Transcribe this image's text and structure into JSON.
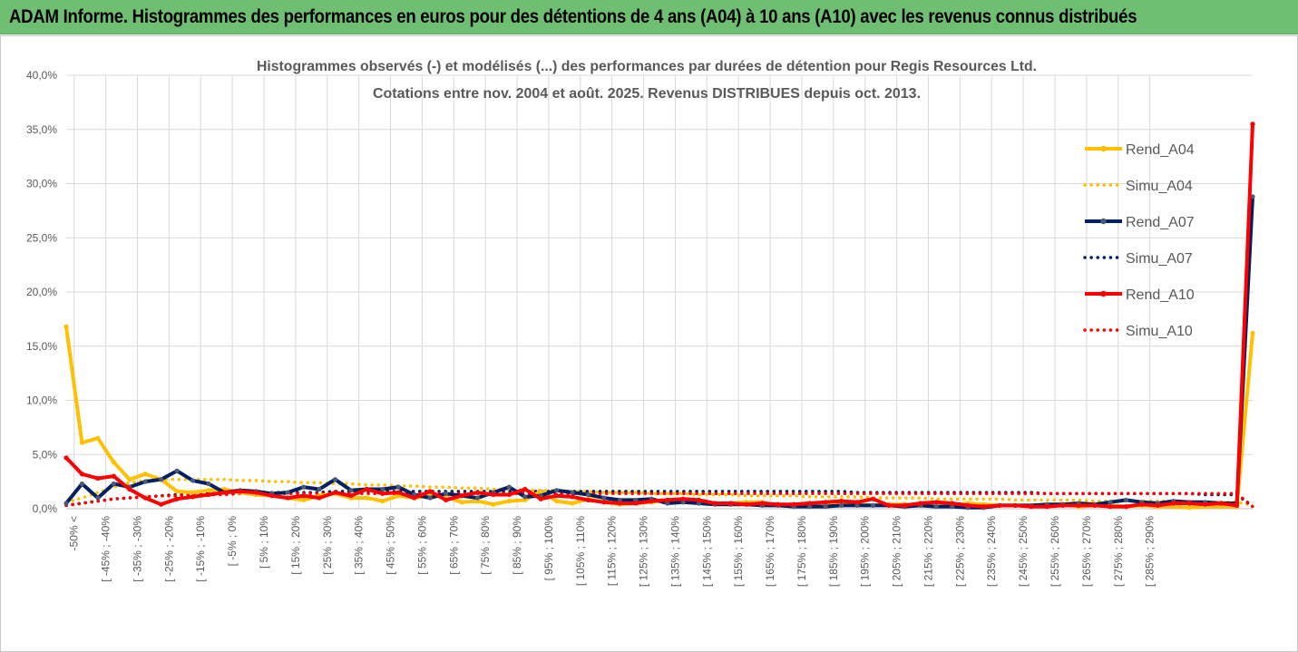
{
  "banner": {
    "title": "ADAM Informe. Histogrammes des performances en euros pour des détentions de 4 ans (A04) à 10 ans (A10) avec les revenus connus distribués"
  },
  "chart_data": {
    "type": "line",
    "title_lines": [
      "Histogrammes observés (-) et modélisés (...) des performances par durées de détention pour Regis Resources Ltd.",
      "Cotations entre nov. 2004 et août. 2025. Revenus DISTRIBUES depuis oct. 2013."
    ],
    "ylim": [
      0,
      40
    ],
    "y_ticks": [
      "0,0%",
      "5,0%",
      "10,0%",
      "15,0%",
      "20,0%",
      "25,0%",
      "30,0%",
      "35,0%",
      "40,0%"
    ],
    "x_tick_labels": [
      "-50% <",
      "[ -45% ; -40%",
      "[ -35% ; -30%",
      "[ -25% ; -20%",
      "[ -15% ; -10%",
      "[ -5% ; 0%",
      "[ 5% ; 10%",
      "[ 15% ; 20%",
      "[ 25% ; 30%",
      "[ 35% ; 40%",
      "[ 45% ; 50%",
      "[ 55% ; 60%",
      "[ 65% ; 70%",
      "[ 75% ; 80%",
      "[ 85% ; 90%",
      "[ 95% ; 100%",
      "[ 105% ; 110%",
      "[ 115% ; 120%",
      "[ 125% ; 130%",
      "[ 135% ; 140%",
      "[ 145% ; 150%",
      "[ 155% ; 160%",
      "[ 165% ; 170%",
      "[ 175% ; 180%",
      "[ 185% ; 190%",
      "[ 195% ; 200%",
      "[ 205% ; 210%",
      "[ 215% ; 220%",
      "[ 225% ; 230%",
      "[ 235% ; 240%",
      "[ 245% ; 250%",
      "[ 255% ; 260%",
      "[ 265% ; 270%",
      "[ 275% ; 280%",
      "[ 285% ; 290%"
    ],
    "grid": true,
    "legend_position": "right",
    "series": [
      {
        "name": "Rend_A04",
        "style": "solid",
        "markers": true,
        "color": "#ffc000",
        "values": [
          16.8,
          6.1,
          6.5,
          4.3,
          2.7,
          3.2,
          2.7,
          1.6,
          1.5,
          1.7,
          1.8,
          1.5,
          1.3,
          1.2,
          1.0,
          0.8,
          1.2,
          1.4,
          1.0,
          1.0,
          0.7,
          1.2,
          1.0,
          1.2,
          1.1,
          0.6,
          0.7,
          0.4,
          0.7,
          0.8,
          1.6,
          0.7,
          0.5,
          0.9,
          0.6,
          0.4,
          0.5,
          0.6,
          0.8,
          0.6,
          0.7,
          0.5,
          0.5,
          0.6,
          0.6,
          0.3,
          0.4,
          0.5,
          0.4,
          0.4,
          0.4,
          0.3,
          0.4,
          0.4,
          0.3,
          0.2,
          0.3,
          0.5,
          0.4,
          0.3,
          0.3,
          0.3,
          0.2,
          0.4,
          0.2,
          0.3,
          0.3,
          0.2,
          0.3,
          0.2,
          0.2,
          0.1,
          0.2,
          0.2,
          0.2,
          16.2
        ]
      },
      {
        "name": "Simu_A04",
        "style": "dotted",
        "markers": false,
        "color": "#ffc000",
        "values": [
          0.6,
          1.0,
          1.5,
          2.0,
          2.4,
          2.6,
          2.7,
          2.7,
          2.7,
          2.7,
          2.7,
          2.6,
          2.6,
          2.5,
          2.5,
          2.4,
          2.4,
          2.3,
          2.3,
          2.2,
          2.2,
          2.1,
          2.1,
          2.0,
          2.0,
          1.9,
          1.9,
          1.8,
          1.8,
          1.7,
          1.7,
          1.7,
          1.6,
          1.6,
          1.5,
          1.5,
          1.5,
          1.4,
          1.4,
          1.4,
          1.3,
          1.3,
          1.3,
          1.2,
          1.2,
          1.2,
          1.2,
          1.1,
          1.1,
          1.1,
          1.1,
          1.0,
          1.0,
          1.0,
          1.0,
          0.9,
          0.9,
          0.9,
          0.9,
          0.9,
          0.8,
          0.8,
          0.8,
          0.8,
          0.8,
          0.7,
          0.7,
          0.7,
          0.7,
          0.7,
          0.7,
          0.6,
          0.6,
          0.6,
          0.6,
          0.3
        ]
      },
      {
        "name": "Rend_A07",
        "style": "solid",
        "markers": true,
        "color": "#002060",
        "values": [
          0.5,
          2.3,
          1.0,
          2.3,
          2.0,
          2.5,
          2.7,
          3.5,
          2.6,
          2.3,
          1.5,
          1.7,
          1.6,
          1.4,
          1.5,
          2.0,
          1.8,
          2.7,
          1.7,
          1.8,
          1.8,
          2.0,
          1.3,
          1.0,
          1.4,
          1.2,
          1.0,
          1.5,
          2.0,
          1.1,
          1.2,
          1.7,
          1.5,
          1.3,
          1.0,
          0.8,
          0.8,
          0.9,
          0.5,
          0.6,
          0.5,
          0.4,
          0.4,
          0.4,
          0.3,
          0.3,
          0.2,
          0.2,
          0.2,
          0.3,
          0.3,
          0.3,
          0.3,
          0.2,
          0.3,
          0.2,
          0.2,
          0.1,
          0.1,
          0.3,
          0.3,
          0.3,
          0.4,
          0.4,
          0.5,
          0.4,
          0.6,
          0.8,
          0.6,
          0.5,
          0.7,
          0.6,
          0.6,
          0.5,
          0.5,
          28.8
        ]
      },
      {
        "name": "Simu_A07",
        "style": "dotted",
        "markers": false,
        "color": "#002060",
        "values": [
          0.3,
          0.5,
          0.7,
          0.9,
          1.0,
          1.1,
          1.2,
          1.3,
          1.3,
          1.4,
          1.4,
          1.4,
          1.5,
          1.5,
          1.5,
          1.5,
          1.5,
          1.6,
          1.6,
          1.6,
          1.6,
          1.6,
          1.6,
          1.6,
          1.6,
          1.6,
          1.6,
          1.6,
          1.6,
          1.6,
          1.6,
          1.6,
          1.6,
          1.6,
          1.6,
          1.6,
          1.6,
          1.6,
          1.6,
          1.6,
          1.6,
          1.6,
          1.6,
          1.6,
          1.6,
          1.6,
          1.6,
          1.6,
          1.6,
          1.6,
          1.5,
          1.5,
          1.5,
          1.5,
          1.5,
          1.5,
          1.5,
          1.5,
          1.5,
          1.5,
          1.5,
          1.5,
          1.4,
          1.4,
          1.4,
          1.4,
          1.4,
          1.4,
          1.4,
          1.4,
          1.4,
          1.4,
          1.3,
          1.3,
          1.3,
          0.2
        ]
      },
      {
        "name": "Rend_A10",
        "style": "solid",
        "markers": true,
        "color": "#ff0000",
        "values": [
          4.7,
          3.2,
          2.8,
          3.0,
          1.8,
          1.0,
          0.4,
          0.9,
          1.1,
          1.3,
          1.5,
          1.6,
          1.5,
          1.2,
          1.0,
          1.2,
          1.0,
          1.5,
          1.2,
          1.8,
          1.4,
          1.5,
          1.0,
          1.6,
          0.8,
          1.2,
          1.5,
          1.3,
          1.3,
          1.8,
          0.9,
          1.2,
          1.1,
          0.8,
          0.6,
          0.5,
          0.5,
          0.7,
          0.8,
          0.9,
          0.8,
          0.5,
          0.5,
          0.4,
          0.5,
          0.4,
          0.4,
          0.5,
          0.6,
          0.7,
          0.6,
          0.9,
          0.3,
          0.3,
          0.5,
          0.6,
          0.5,
          0.3,
          0.2,
          0.3,
          0.3,
          0.2,
          0.2,
          0.3,
          0.3,
          0.3,
          0.2,
          0.2,
          0.4,
          0.3,
          0.5,
          0.5,
          0.4,
          0.5,
          0.3,
          35.5
        ]
      },
      {
        "name": "Simu_A10",
        "style": "dotted",
        "markers": false,
        "color": "#ff0000",
        "values": [
          0.3,
          0.5,
          0.7,
          0.9,
          1.0,
          1.1,
          1.2,
          1.2,
          1.3,
          1.3,
          1.3,
          1.4,
          1.4,
          1.4,
          1.4,
          1.4,
          1.4,
          1.4,
          1.4,
          1.4,
          1.4,
          1.4,
          1.4,
          1.4,
          1.4,
          1.4,
          1.4,
          1.4,
          1.4,
          1.4,
          1.4,
          1.4,
          1.4,
          1.4,
          1.4,
          1.4,
          1.4,
          1.4,
          1.4,
          1.4,
          1.4,
          1.4,
          1.4,
          1.4,
          1.4,
          1.4,
          1.4,
          1.4,
          1.4,
          1.4,
          1.4,
          1.4,
          1.4,
          1.4,
          1.4,
          1.4,
          1.4,
          1.4,
          1.4,
          1.4,
          1.4,
          1.4,
          1.4,
          1.4,
          1.4,
          1.4,
          1.4,
          1.4,
          1.4,
          1.4,
          1.4,
          1.4,
          1.4,
          1.4,
          1.4,
          0.2
        ]
      }
    ]
  }
}
